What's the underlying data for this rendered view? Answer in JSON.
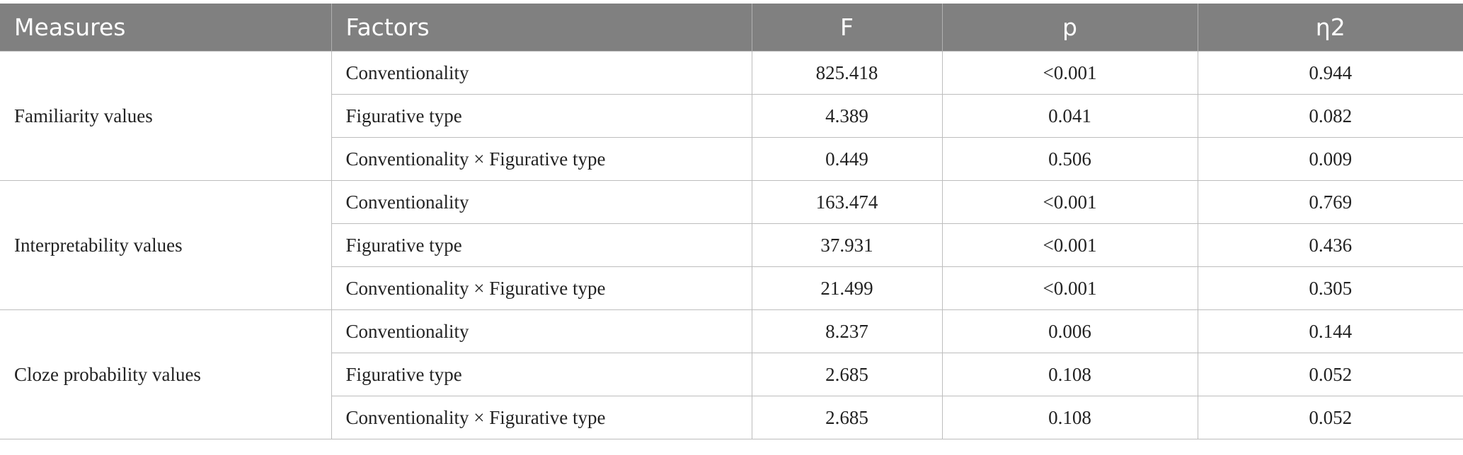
{
  "table": {
    "header": [
      "Measures",
      "Factors",
      "F",
      "p",
      "η2"
    ],
    "groups": [
      {
        "measure": "Familiarity values",
        "rows": [
          {
            "factor": "Conventionality",
            "F": "825.418",
            "p": "<0.001",
            "eta2": "0.944"
          },
          {
            "factor": "Figurative type",
            "F": "4.389",
            "p": "0.041",
            "eta2": "0.082"
          },
          {
            "factor": "Conventionality × Figurative type",
            "F": "0.449",
            "p": "0.506",
            "eta2": "0.009"
          }
        ]
      },
      {
        "measure": "Interpretability values",
        "rows": [
          {
            "factor": "Conventionality",
            "F": "163.474",
            "p": "<0.001",
            "eta2": "0.769"
          },
          {
            "factor": "Figurative type",
            "F": "37.931",
            "p": "<0.001",
            "eta2": "0.436"
          },
          {
            "factor": "Conventionality × Figurative type",
            "F": "21.499",
            "p": "<0.001",
            "eta2": "0.305"
          }
        ]
      },
      {
        "measure": "Cloze probability values",
        "rows": [
          {
            "factor": "Conventionality",
            "F": "8.237",
            "p": "0.006",
            "eta2": "0.144"
          },
          {
            "factor": "Figurative type",
            "F": "2.685",
            "p": "0.108",
            "eta2": "0.052"
          },
          {
            "factor": "Conventionality × Figurative type",
            "F": "2.685",
            "p": "0.108",
            "eta2": "0.052"
          }
        ]
      }
    ]
  }
}
